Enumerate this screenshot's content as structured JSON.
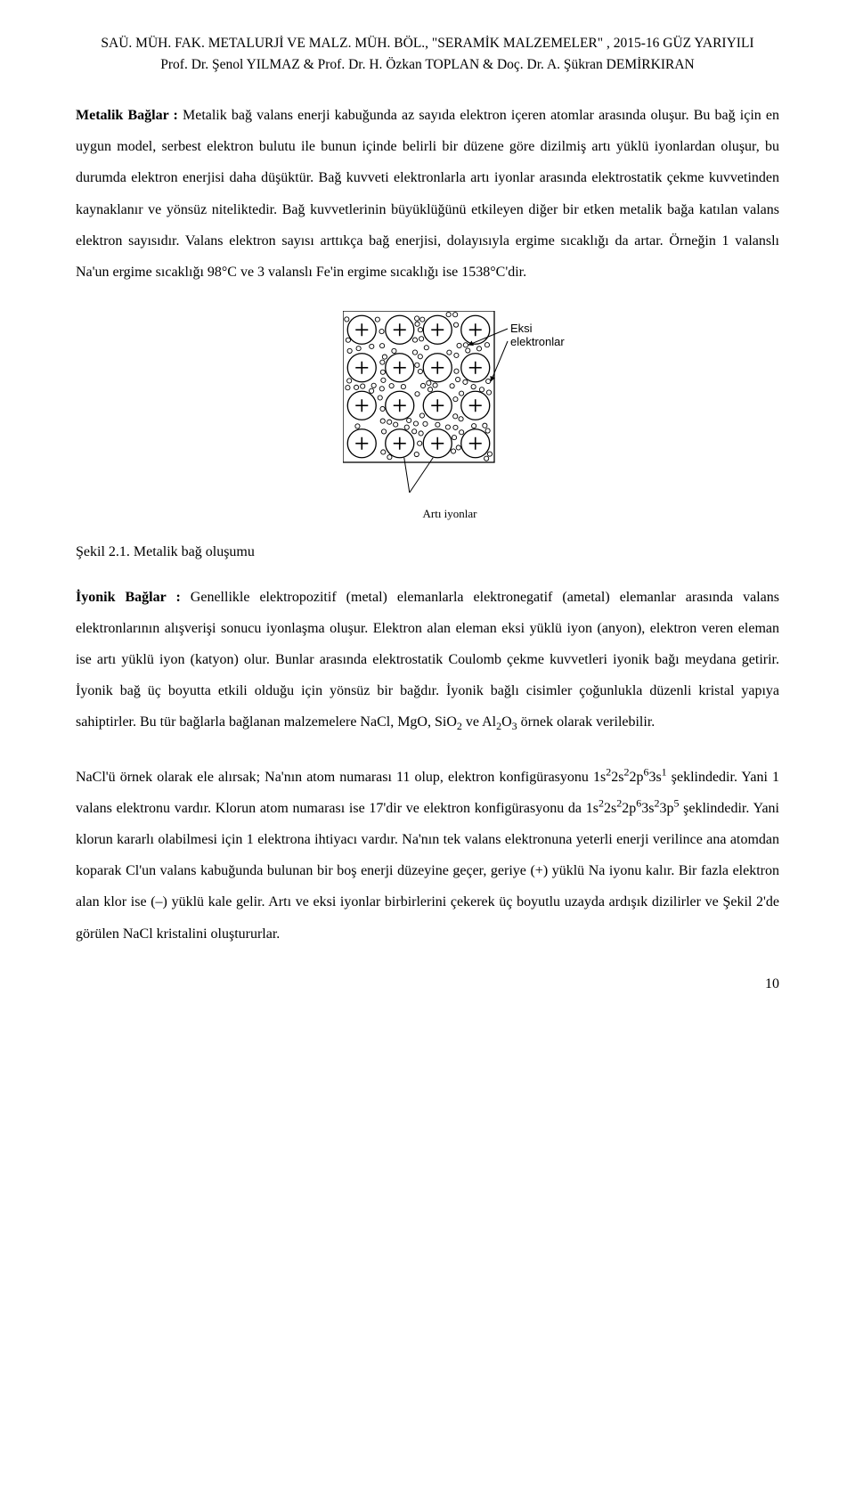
{
  "header": {
    "line1": "SAÜ. MÜH. FAK. METALURJİ VE  MALZ. MÜH. BÖL., \"SERAMİK MALZEMELER\" , 2015-16 GÜZ YARIYILI",
    "line2": "Prof. Dr. Şenol YILMAZ & Prof. Dr. H. Özkan TOPLAN & Doç. Dr. A. Şükran DEMİRKIRAN"
  },
  "para1": {
    "label": "Metalik Bağlar",
    "sep": " : ",
    "text": "Metalik bağ valans enerji kabuğunda az sayıda elektron içeren atomlar arasında oluşur. Bu bağ için en uygun model, serbest elektron bulutu ile bunun içinde belirli bir düzene göre dizilmiş artı yüklü iyonlardan oluşur, bu durumda elektron enerjisi daha düşüktür. Bağ kuvveti elektronlarla artı iyonlar arasında elektrostatik çekme kuvvetinden kaynaklanır ve yönsüz niteliktedir. Bağ kuvvetlerinin büyüklüğünü etkileyen diğer bir etken metalik bağa katılan valans elektron sayısıdır. Valans elektron sayısı arttıkça bağ enerjisi, dolayısıyla ergime sıcaklığı da artar. Örneğin 1 valanslı Na'un ergime sıcaklığı 98°C ve 3 valanslı Fe'in ergime sıcaklığı ise 1538°C'dir."
  },
  "diagram": {
    "label_eksi1": "Eksi",
    "label_eksi2": "elektronlar",
    "label_arti": "Artı iyonlar",
    "caption": "Şekil 2.1. Metalik bağ oluşumu",
    "gridsize": 4,
    "box_size": 170,
    "big_r": 16,
    "small_r": 2.6,
    "stroke": "#000000",
    "fill": "#ffffff"
  },
  "para2": {
    "label": "İyonik Bağlar",
    "sep": " : ",
    "text_html": "Genellikle elektropozitif (metal) elemanlarla elektronegatif (ametal) elemanlar arasında valans elektronlarının alışverişi sonucu iyonlaşma oluşur. Elektron alan eleman eksi yüklü iyon (anyon), elektron veren eleman ise artı yüklü iyon (katyon) olur. Bunlar arasında elektrostatik Coulomb çekme kuvvetleri iyonik bağı meydana getirir. İyonik bağ üç boyutta etkili olduğu için yönsüz bir bağdır. İyonik bağlı cisimler çoğunlukla düzenli kristal yapıya sahiptirler. Bu tür bağlarla bağlanan malzemelere NaCl, MgO, SiO<sub>2</sub> ve Al<sub>2</sub>O<sub>3</sub> örnek olarak verilebilir."
  },
  "para3": {
    "text_html": "NaCl'ü örnek olarak ele alırsak; Na'nın atom numarası 11 olup, elektron konfigürasyonu 1s<sup>2</sup>2s<sup>2</sup>2p<sup>6</sup>3s<sup>1</sup> şeklindedir. Yani 1 valans elektronu vardır. Klorun atom numarası ise 17'dir ve elektron konfigürasyonu da 1s<sup>2</sup>2s<sup>2</sup>2p<sup>6</sup>3s<sup>2</sup>3p<sup>5</sup> şeklindedir. Yani klorun kararlı olabilmesi için 1 elektrona ihtiyacı vardır. Na'nın tek valans elektronuna yeterli enerji verilince ana atomdan koparak Cl'un valans kabuğunda bulunan bir boş enerji düzeyine geçer, geriye (+) yüklü Na iyonu kalır. Bir fazla elektron alan klor ise (–) yüklü kale gelir. Artı ve eksi iyonlar birbirlerini çekerek üç boyutlu uzayda ardışık dizilirler ve Şekil 2'de görülen NaCl kristalini oluştururlar."
  },
  "page_number": "10"
}
